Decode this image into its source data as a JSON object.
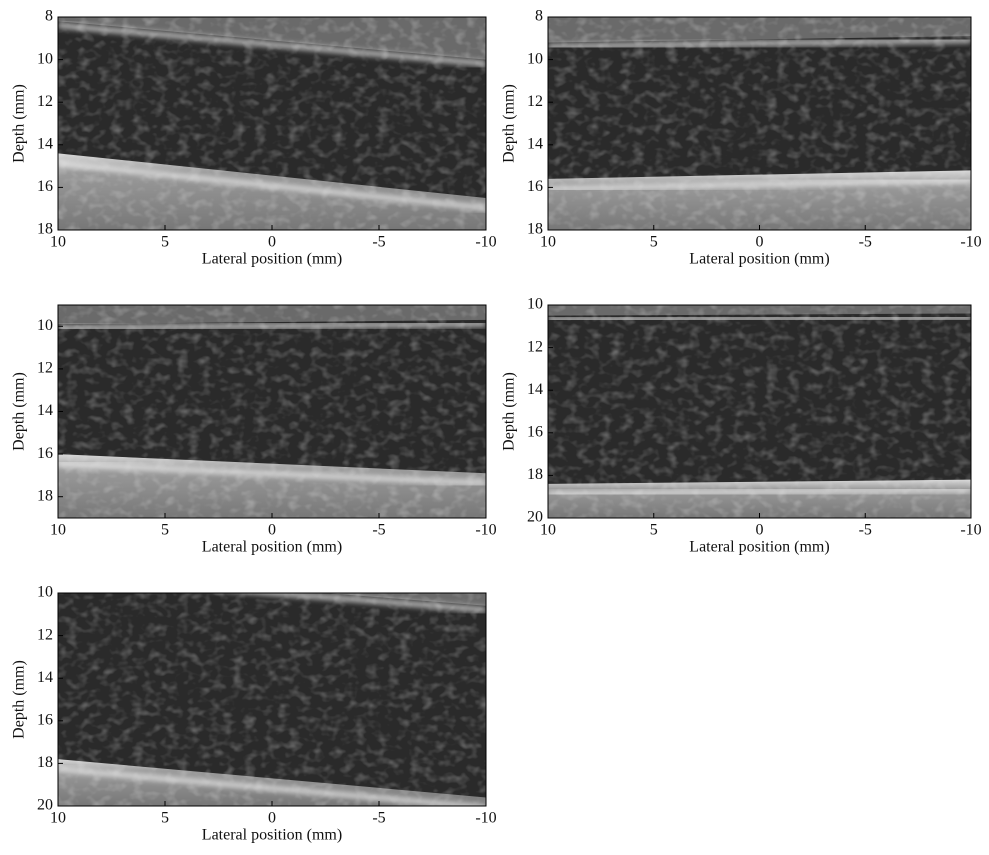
{
  "chart_data": [
    {
      "type": "image",
      "xlabel": "Lateral position (mm)",
      "ylabel": "Depth (mm)",
      "xlim": [
        10,
        -10
      ],
      "ylim": [
        18,
        8
      ],
      "xticks": [
        10,
        5,
        0,
        -5,
        -10
      ],
      "yticks": [
        8,
        10,
        12,
        14,
        16,
        18
      ]
    },
    {
      "type": "image",
      "xlabel": "Lateral position (mm)",
      "ylabel": "Depth (mm)",
      "xlim": [
        10,
        -10
      ],
      "ylim": [
        18,
        8
      ],
      "xticks": [
        10,
        5,
        0,
        -5,
        -10
      ],
      "yticks": [
        8,
        10,
        12,
        14,
        16,
        18
      ]
    },
    {
      "type": "image",
      "xlabel": "Lateral position (mm)",
      "ylabel": "Depth (mm)",
      "xlim": [
        10,
        -10
      ],
      "ylim": [
        19,
        9
      ],
      "xticks": [
        10,
        5,
        0,
        -5,
        -10
      ],
      "yticks": [
        10,
        12,
        14,
        16,
        18
      ]
    },
    {
      "type": "image",
      "xlabel": "Lateral position (mm)",
      "ylabel": "Depth (mm)",
      "xlim": [
        10,
        -10
      ],
      "ylim": [
        20,
        10
      ],
      "xticks": [
        10,
        5,
        0,
        -5,
        -10
      ],
      "yticks": [
        10,
        12,
        14,
        16,
        18,
        20
      ]
    },
    {
      "type": "image",
      "xlabel": "Lateral position (mm)",
      "ylabel": "Depth (mm)",
      "xlim": [
        10,
        -10
      ],
      "ylim": [
        20,
        10
      ],
      "xticks": [
        10,
        5,
        0,
        -5,
        -10
      ],
      "yticks": [
        10,
        12,
        14,
        16,
        18,
        20
      ]
    }
  ]
}
